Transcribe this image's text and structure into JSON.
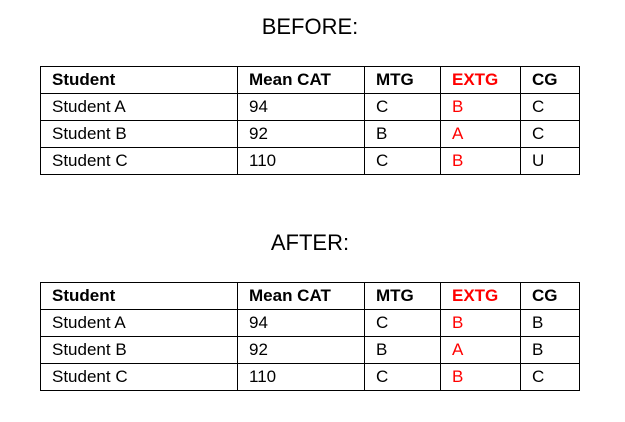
{
  "before": {
    "title": "BEFORE:",
    "headers": [
      "Student",
      "Mean CAT",
      "MTG",
      "EXTG",
      "CG"
    ],
    "rows": [
      [
        "Student A",
        "94",
        "C",
        "B",
        "C"
      ],
      [
        "Student B",
        "92",
        "B",
        "A",
        "C"
      ],
      [
        "Student C",
        "110",
        "C",
        "B",
        "U"
      ]
    ]
  },
  "after": {
    "title": "AFTER:",
    "headers": [
      "Student",
      "Mean CAT",
      "MTG",
      "EXTG",
      "CG"
    ],
    "rows": [
      [
        "Student A",
        "94",
        "C",
        "B",
        "B"
      ],
      [
        "Student B",
        "92",
        "B",
        "A",
        "B"
      ],
      [
        "Student C",
        "110",
        "C",
        "B",
        "C"
      ]
    ]
  },
  "colors": {
    "extg_accent": "#ff0000",
    "text": "#000000",
    "border": "#000000",
    "background": "#ffffff"
  }
}
